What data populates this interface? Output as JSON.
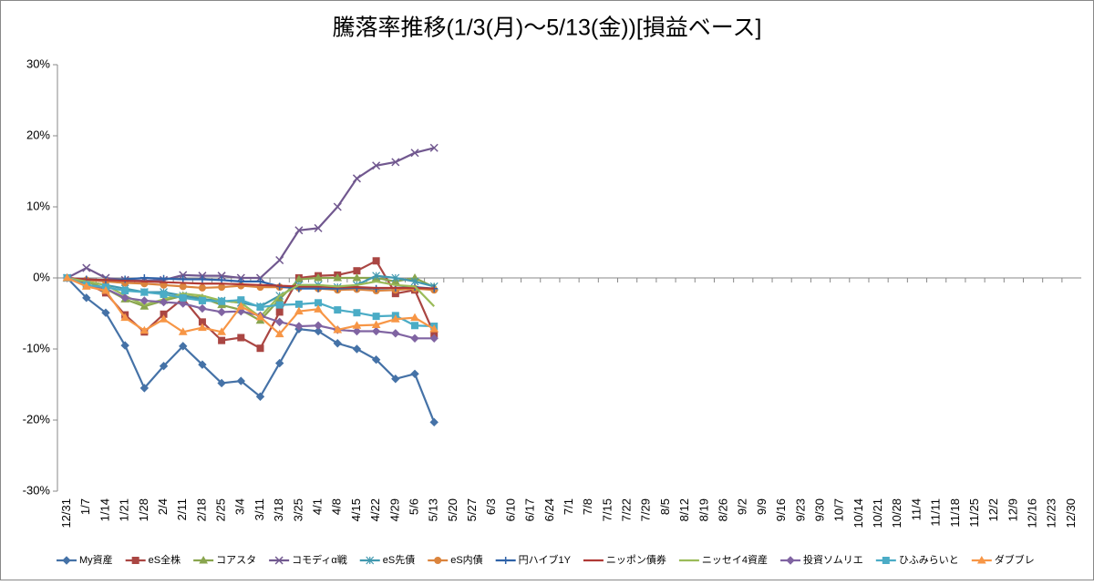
{
  "chart_data": {
    "type": "line",
    "title": "騰落率推移(1/3(月)～5/13(金))[損益ベース]",
    "categories": [
      "12/31",
      "1/7",
      "1/14",
      "1/21",
      "1/28",
      "2/4",
      "2/11",
      "2/18",
      "2/25",
      "3/4",
      "3/11",
      "3/18",
      "3/25",
      "4/1",
      "4/8",
      "4/15",
      "4/22",
      "4/29",
      "5/6",
      "5/13",
      "5/20",
      "5/27",
      "6/3",
      "6/10",
      "6/17",
      "6/24",
      "7/1",
      "7/8",
      "7/15",
      "7/22",
      "7/29",
      "8/5",
      "8/12",
      "8/19",
      "8/26",
      "9/2",
      "9/9",
      "9/16",
      "9/23",
      "9/30",
      "10/7",
      "10/14",
      "10/21",
      "10/28",
      "11/4",
      "11/11",
      "11/18",
      "11/25",
      "12/2",
      "12/9",
      "12/16",
      "12/23",
      "12/30"
    ],
    "ylim": [
      -30,
      30
    ],
    "yticks": [
      {
        "value": -30,
        "label": "-30%"
      },
      {
        "value": -20,
        "label": "-20%"
      },
      {
        "value": -10,
        "label": "-10%"
      },
      {
        "value": 0,
        "label": "0%"
      },
      {
        "value": 10,
        "label": "10%"
      },
      {
        "value": 20,
        "label": "20%"
      },
      {
        "value": 30,
        "label": "30%"
      }
    ],
    "grid": false,
    "legend": "bottom",
    "series": [
      {
        "name": "My資産",
        "color": "#4572a7",
        "marker": "diamond",
        "values": [
          0,
          -2.8,
          -4.9,
          -9.5,
          -15.5,
          -12.4,
          -9.6,
          -12.2,
          -14.8,
          -14.5,
          -16.7,
          -12,
          -7.2,
          -7.5,
          -9.2,
          -10,
          -11.5,
          -14.2,
          -13.5,
          -20.3,
          null,
          null,
          null,
          null,
          null,
          null,
          null,
          null,
          null,
          null,
          null,
          null,
          null,
          null,
          null,
          null,
          null,
          null,
          null,
          null,
          null,
          null,
          null,
          null,
          null,
          null,
          null,
          null,
          null,
          null,
          null,
          null,
          null
        ]
      },
      {
        "name": "eS全株",
        "color": "#aa4643",
        "marker": "square",
        "values": [
          0,
          -0.8,
          -2.1,
          -5.2,
          -7.6,
          -5.1,
          -2.9,
          -6.2,
          -8.8,
          -8.4,
          -9.9,
          -4.8,
          0,
          0.3,
          0.4,
          1.0,
          2.4,
          -2.2,
          -1.7,
          -7.9,
          null,
          null,
          null,
          null,
          null,
          null,
          null,
          null,
          null,
          null,
          null,
          null,
          null,
          null,
          null,
          null,
          null,
          null,
          null,
          null,
          null,
          null,
          null,
          null,
          null,
          null,
          null,
          null,
          null,
          null,
          null,
          null,
          null
        ]
      },
      {
        "name": "コアスタ",
        "color": "#89a54e",
        "marker": "triangle",
        "values": [
          0,
          -0.5,
          -1.5,
          -3,
          -4,
          -3.2,
          -2.5,
          -2.8,
          -3.8,
          -4.5,
          -6,
          -3,
          -0.2,
          0,
          0,
          0,
          0,
          -0.5,
          0,
          -1.3,
          null,
          null,
          null,
          null,
          null,
          null,
          null,
          null,
          null,
          null,
          null,
          null,
          null,
          null,
          null,
          null,
          null,
          null,
          null,
          null,
          null,
          null,
          null,
          null,
          null,
          null,
          null,
          null,
          null,
          null,
          null,
          null,
          null
        ]
      },
      {
        "name": "コモディα戦",
        "color": "#71588f",
        "marker": "x",
        "values": [
          0,
          1.4,
          0,
          -0.3,
          -0.4,
          -0.3,
          0.4,
          0.3,
          0.3,
          0,
          0,
          2.5,
          6.7,
          7.0,
          10.0,
          14.0,
          15.8,
          16.3,
          17.6,
          18.3,
          null,
          null,
          null,
          null,
          null,
          null,
          null,
          null,
          null,
          null,
          null,
          null,
          null,
          null,
          null,
          null,
          null,
          null,
          null,
          null,
          null,
          null,
          null,
          null,
          null,
          null,
          null,
          null,
          null,
          null,
          null,
          null,
          null
        ]
      },
      {
        "name": "eS先債",
        "color": "#4198af",
        "marker": "star",
        "values": [
          0,
          -0.5,
          -1,
          -1.5,
          -2,
          -2,
          -2.5,
          -3,
          -3.2,
          -3.5,
          -4,
          -2.5,
          -1,
          -1,
          -1.3,
          -1,
          0.3,
          0,
          -0.5,
          -1.2,
          null,
          null,
          null,
          null,
          null,
          null,
          null,
          null,
          null,
          null,
          null,
          null,
          null,
          null,
          null,
          null,
          null,
          null,
          null,
          null,
          null,
          null,
          null,
          null,
          null,
          null,
          null,
          null,
          null,
          null,
          null,
          null,
          null
        ]
      },
      {
        "name": "eS内債",
        "color": "#db843d",
        "marker": "circle",
        "values": [
          0,
          -0.3,
          -0.5,
          -0.7,
          -0.8,
          -1,
          -1.2,
          -1.4,
          -1.3,
          -1.1,
          -1.3,
          -1.3,
          -1.4,
          -1.5,
          -1.7,
          -1.6,
          -1.8,
          -1.7,
          -1.5,
          -1.7,
          null,
          null,
          null,
          null,
          null,
          null,
          null,
          null,
          null,
          null,
          null,
          null,
          null,
          null,
          null,
          null,
          null,
          null,
          null,
          null,
          null,
          null,
          null,
          null,
          null,
          null,
          null,
          null,
          null,
          null,
          null,
          null,
          null
        ]
      },
      {
        "name": "円ハイブ1Y",
        "color": "#2f62a8",
        "marker": "plus",
        "values": [
          0,
          -0.2,
          -0.3,
          -0.2,
          0,
          -0.1,
          -0.2,
          -0.2,
          -0.3,
          -0.5,
          -0.5,
          -1.2,
          -1.5,
          -1.5,
          -1.5,
          -1.4,
          -1.5,
          -1.4,
          -1.3,
          -1.5,
          null,
          null,
          null,
          null,
          null,
          null,
          null,
          null,
          null,
          null,
          null,
          null,
          null,
          null,
          null,
          null,
          null,
          null,
          null,
          null,
          null,
          null,
          null,
          null,
          null,
          null,
          null,
          null,
          null,
          null,
          null,
          null,
          null
        ]
      },
      {
        "name": "ニッポン債券",
        "color": "#b03a36",
        "marker": "none",
        "values": [
          0,
          -0.2,
          -0.3,
          -0.4,
          -0.5,
          -0.6,
          -0.7,
          -0.8,
          -0.8,
          -0.9,
          -1,
          -1.1,
          -1.2,
          -1.2,
          -1.3,
          -1.3,
          -1.4,
          -1.4,
          -1.4,
          -1.5,
          null,
          null,
          null,
          null,
          null,
          null,
          null,
          null,
          null,
          null,
          null,
          null,
          null,
          null,
          null,
          null,
          null,
          null,
          null,
          null,
          null,
          null,
          null,
          null,
          null,
          null,
          null,
          null,
          null,
          null,
          null,
          null,
          null
        ]
      },
      {
        "name": "ニッセイ4資産",
        "color": "#9bbb59",
        "marker": "none",
        "values": [
          0,
          -0.5,
          -1,
          -2.5,
          -3.8,
          -3,
          -2.2,
          -2.5,
          -3.2,
          -3.5,
          -5.5,
          -2.5,
          -1,
          -1,
          -1.2,
          -1,
          -0.5,
          -1,
          -1.2,
          -4,
          null,
          null,
          null,
          null,
          null,
          null,
          null,
          null,
          null,
          null,
          null,
          null,
          null,
          null,
          null,
          null,
          null,
          null,
          null,
          null,
          null,
          null,
          null,
          null,
          null,
          null,
          null,
          null,
          null,
          null,
          null,
          null,
          null
        ]
      },
      {
        "name": "投資ソムリエ",
        "color": "#8064a2",
        "marker": "diamond",
        "values": [
          0,
          -1,
          -1.5,
          -2.8,
          -3.2,
          -3.4,
          -3.6,
          -4.3,
          -4.8,
          -4.7,
          -5.3,
          -6.2,
          -6.8,
          -6.7,
          -7.3,
          -7.5,
          -7.5,
          -7.8,
          -8.5,
          -8.5,
          null,
          null,
          null,
          null,
          null,
          null,
          null,
          null,
          null,
          null,
          null,
          null,
          null,
          null,
          null,
          null,
          null,
          null,
          null,
          null,
          null,
          null,
          null,
          null,
          null,
          null,
          null,
          null,
          null,
          null,
          null,
          null,
          null
        ]
      },
      {
        "name": "ひふみらいと",
        "color": "#4bacc6",
        "marker": "square",
        "values": [
          0,
          -1,
          -1.3,
          -1.8,
          -2,
          -2.3,
          -2.8,
          -3.2,
          -3.3,
          -3.1,
          -4.1,
          -3.8,
          -3.7,
          -3.5,
          -4.5,
          -4.9,
          -5.4,
          -5.3,
          -6.7,
          -6.8,
          null,
          null,
          null,
          null,
          null,
          null,
          null,
          null,
          null,
          null,
          null,
          null,
          null,
          null,
          null,
          null,
          null,
          null,
          null,
          null,
          null,
          null,
          null,
          null,
          null,
          null,
          null,
          null,
          null,
          null,
          null,
          null,
          null
        ]
      },
      {
        "name": "ダブブレ",
        "color": "#f79646",
        "marker": "triangle",
        "values": [
          0,
          -1.2,
          -1.8,
          -5.6,
          -7.4,
          -5.8,
          -7.6,
          -7,
          -7.6,
          -4,
          -5.5,
          -7.9,
          -4.7,
          -4.4,
          -7.3,
          -6.7,
          -6.6,
          -5.8,
          -5.6,
          -7.2,
          null,
          null,
          null,
          null,
          null,
          null,
          null,
          null,
          null,
          null,
          null,
          null,
          null,
          null,
          null,
          null,
          null,
          null,
          null,
          null,
          null,
          null,
          null,
          null,
          null,
          null,
          null,
          null,
          null,
          null,
          null,
          null,
          null
        ]
      }
    ]
  }
}
